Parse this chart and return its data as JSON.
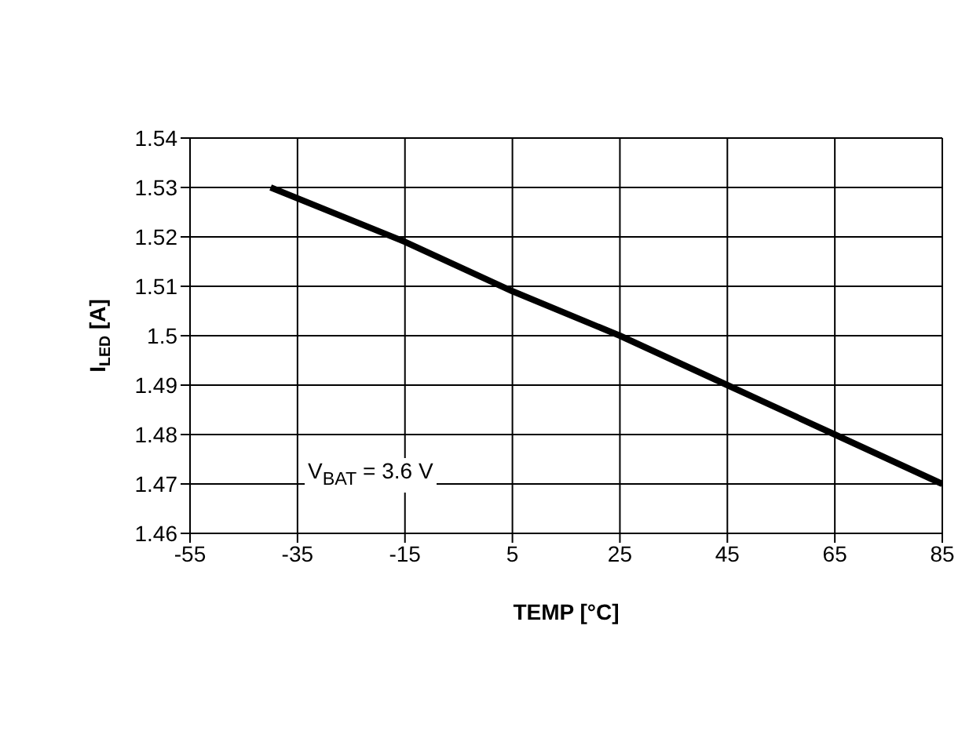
{
  "chart_data": {
    "type": "line",
    "xlabel": "TEMP [°C]",
    "ylabel": "I$_{LED}$ [A]",
    "x": [
      -40,
      -15,
      5,
      25,
      45,
      65,
      85
    ],
    "series": [
      {
        "color": "#000000",
        "values": [
          1.53,
          1.519,
          1.509,
          1.5,
          1.49,
          1.48,
          1.47
        ]
      }
    ],
    "xlim": [
      -55,
      85
    ],
    "xticks": [
      -55,
      -35,
      -15,
      5,
      25,
      45,
      65,
      85
    ],
    "ylim": [
      1.46,
      1.54
    ],
    "yticks": [
      1.46,
      1.47,
      1.48,
      1.49,
      1.5,
      1.51,
      1.52,
      1.53,
      1.54
    ],
    "grid": true,
    "marker": "none",
    "line_style": "solid",
    "annotations": [
      "V$_{BAT}$ = 3.6 V"
    ]
  }
}
